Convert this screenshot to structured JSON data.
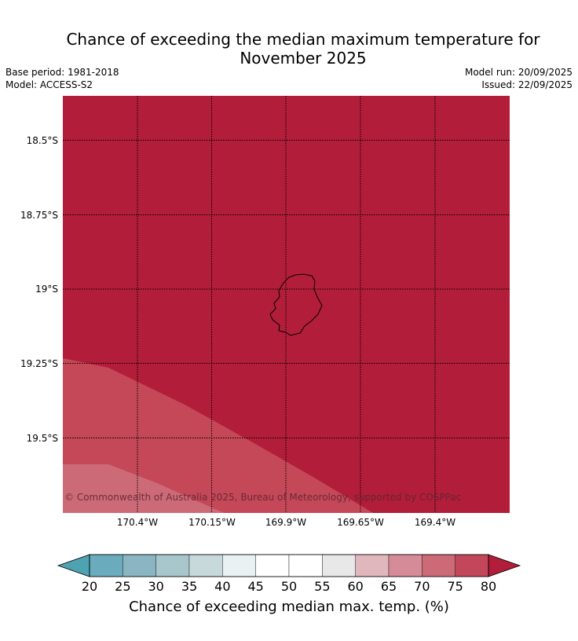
{
  "title_line1": "Chance of exceeding the median maximum temperature for",
  "title_line2": "November 2025",
  "meta": {
    "base_period": "Base period: 1981-2018",
    "model": "Model: ACCESS-S2",
    "model_run": "Model run: 20/09/2025",
    "issued": "Issued: 22/09/2025"
  },
  "map": {
    "lat_labels": [
      "18.5°S",
      "18.75°S",
      "19°S",
      "19.25°S",
      "19.5°S"
    ],
    "lon_labels": [
      "170.4°W",
      "170.15°W",
      "169.9°W",
      "169.65°W",
      "169.4°W"
    ],
    "copyright": "© Commonwealth of Australia 2025, Bureau of Meteorology, supported by COSPPac",
    "colors": {
      "band_75_80": "#b21d3a",
      "band_70_75": "#c44858",
      "band_65_70": "#cd6a77"
    }
  },
  "colorbar": {
    "label": "Chance of exceeding median max. temp. (%)",
    "ticks": [
      "20",
      "25",
      "30",
      "35",
      "40",
      "45",
      "50",
      "55",
      "60",
      "65",
      "70",
      "75",
      "80"
    ],
    "low_extend_color": "#4ea3b3",
    "high_extend_color": "#b21d3a",
    "colors": [
      "#6aacbd",
      "#8ab5c2",
      "#a8c7cc",
      "#c8d9dc",
      "#e9f1f2",
      "#ffffff",
      "#ffffff",
      "#e8e8e8",
      "#e0b7bd",
      "#d68c98",
      "#cc6a77",
      "#c2475a"
    ]
  }
}
